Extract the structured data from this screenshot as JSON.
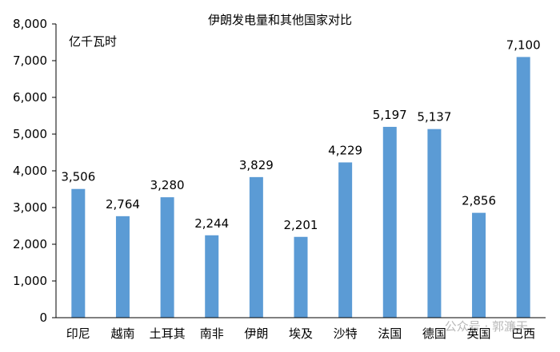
{
  "chart_data": {
    "type": "bar",
    "title": "伊朗发电量和其他国家对比",
    "unit_label": "亿千瓦时",
    "categories": [
      "印尼",
      "越南",
      "土耳其",
      "南非",
      "伊朗",
      "埃及",
      "沙特",
      "法国",
      "德国",
      "英国",
      "巴西"
    ],
    "values": [
      3506,
      2764,
      3280,
      2244,
      3829,
      2201,
      4229,
      5197,
      5137,
      2856,
      7100
    ],
    "data_labels": [
      "3,506",
      "2,764",
      "3,280",
      "2,244",
      "3,829",
      "2,201",
      "4,229",
      "5,197",
      "5,137",
      "2,856",
      "7,100"
    ],
    "y_ticks": [
      "0",
      "1,000",
      "2,000",
      "3,000",
      "4,000",
      "5,000",
      "6,000",
      "7,000",
      "8,000"
    ],
    "ylim": [
      0,
      8000
    ],
    "grid": false,
    "bar_color": "#5b9bd5"
  },
  "watermark": "公众号 · 郭濂天"
}
